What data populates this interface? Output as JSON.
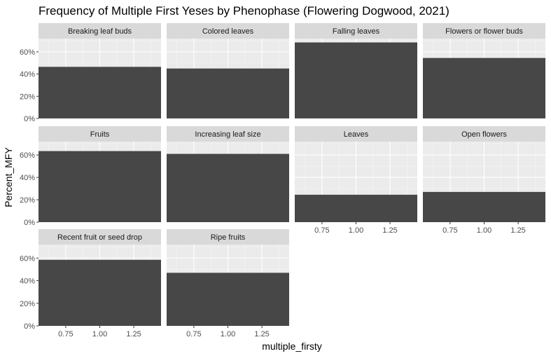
{
  "chart_data": {
    "type": "bar",
    "title": "Frequency of Multiple First Yeses by Phenophase (Flowering Dogwood, 2021)",
    "xlabel": "multiple_firsty",
    "ylabel": "Percent_MFY",
    "x_tick_labels": [
      "0.75",
      "1.00",
      "1.25"
    ],
    "y_tick_labels": [
      "0%",
      "20%",
      "40%",
      "60%"
    ],
    "ylim": [
      0,
      0.72
    ],
    "bar_x": 1,
    "grid": true,
    "bar_color": "#474747",
    "panel_bg": "#ebebeb",
    "strip_bg": "#d9d9d9",
    "facets": [
      {
        "name": "Breaking leaf buds",
        "value": 0.465
      },
      {
        "name": "Colored leaves",
        "value": 0.45
      },
      {
        "name": "Falling leaves",
        "value": 0.685
      },
      {
        "name": "Flowers or flower buds",
        "value": 0.545
      },
      {
        "name": "Fruits",
        "value": 0.635
      },
      {
        "name": "Increasing leaf size",
        "value": 0.61
      },
      {
        "name": "Leaves",
        "value": 0.245
      },
      {
        "name": "Open flowers",
        "value": 0.27
      },
      {
        "name": "Recent fruit or seed drop",
        "value": 0.585
      },
      {
        "name": "Ripe fruits",
        "value": 0.47
      }
    ]
  }
}
